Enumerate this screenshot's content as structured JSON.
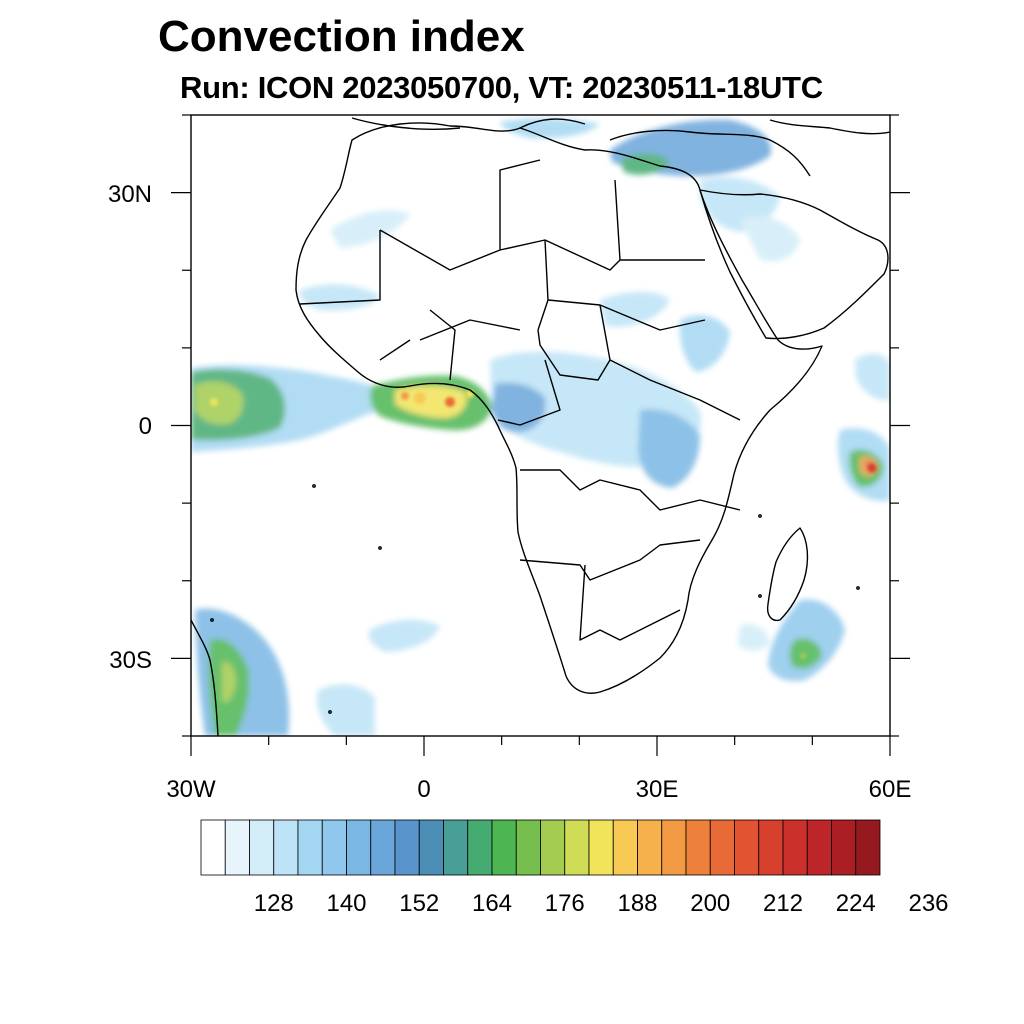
{
  "title": "Convection index",
  "subtitle": "Run: ICON 2023050700,  VT: 20230511-18UTC",
  "map": {
    "region": "Africa",
    "lon_range": [
      -30,
      60
    ],
    "lat_range": [
      -40,
      40
    ],
    "lat_ticks": [
      {
        "value": 30,
        "label": "30N"
      },
      {
        "value": 0,
        "label": "0"
      },
      {
        "value": -30,
        "label": "30S"
      }
    ],
    "lon_ticks": [
      {
        "value": -30,
        "label": "30W"
      },
      {
        "value": 0,
        "label": "0"
      },
      {
        "value": 30,
        "label": "30E"
      },
      {
        "value": 60,
        "label": "60E"
      }
    ]
  },
  "colorbar": {
    "colors": [
      "#ffffff",
      "#e8f4fb",
      "#d2ecf8",
      "#bde3f6",
      "#a4d7f2",
      "#8fc8ec",
      "#7ab7e3",
      "#6aa6da",
      "#5995cc",
      "#4c8eb6",
      "#479f98",
      "#45ab71",
      "#4db652",
      "#76bf4e",
      "#a3cc50",
      "#cfdc55",
      "#f1e35a",
      "#f8c955",
      "#f6b04c",
      "#f29943",
      "#ed813c",
      "#e86a36",
      "#e25431",
      "#d8402e",
      "#cb302b",
      "#bd2528",
      "#ab1f24",
      "#951a1f"
    ],
    "labels": [
      "128",
      "140",
      "152",
      "164",
      "176",
      "188",
      "200",
      "212",
      "224",
      "236"
    ]
  }
}
